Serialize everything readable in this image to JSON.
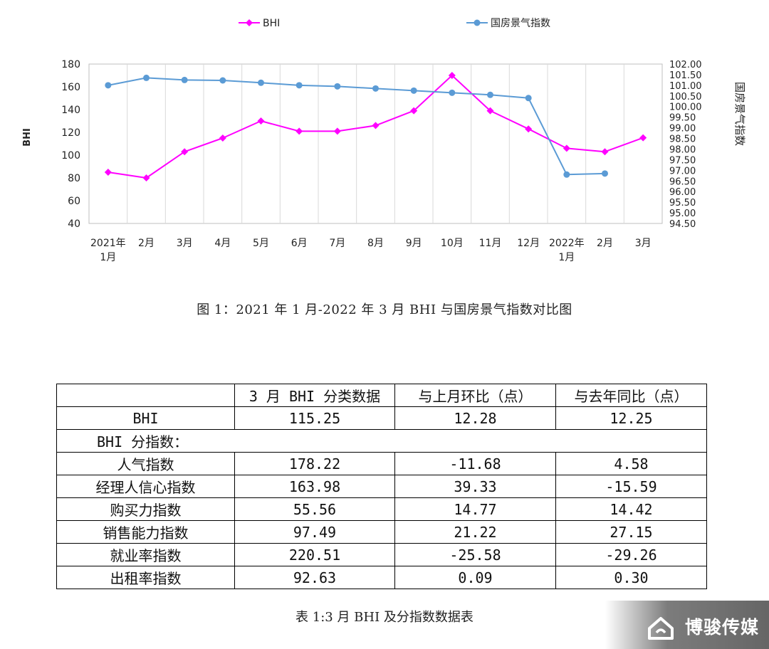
{
  "chart_data": {
    "type": "line",
    "categories": [
      "2021年\n1月",
      "2月",
      "3月",
      "4月",
      "5月",
      "6月",
      "7月",
      "8月",
      "9月",
      "10月",
      "11月",
      "12月",
      "2022年\n1月",
      "2月",
      "3月"
    ],
    "series": [
      {
        "name": "BHI",
        "axis": "left",
        "color": "#ff00ff",
        "marker": "diamond",
        "values": [
          85,
          80,
          103,
          115,
          130,
          121,
          121,
          126,
          139,
          170,
          139,
          123,
          106,
          103,
          115.25
        ]
      },
      {
        "name": "国房景气指数",
        "axis": "right",
        "color": "#5b9bd5",
        "marker": "circle",
        "values": [
          101.0,
          101.35,
          101.25,
          101.23,
          101.12,
          101.0,
          100.95,
          100.85,
          100.75,
          100.65,
          100.55,
          100.4,
          96.8,
          96.85,
          null
        ]
      }
    ],
    "ylabel": "BHI",
    "y2label": "国房景气指数",
    "ylim": [
      40,
      180
    ],
    "yticks": [
      "40",
      "60",
      "80",
      "100",
      "120",
      "140",
      "160",
      "180"
    ],
    "y2lim": [
      94.5,
      102.0
    ],
    "y2ticks": [
      "94.50",
      "95.00",
      "95.50",
      "96.00",
      "96.50",
      "97.00",
      "97.50",
      "98.00",
      "98.50",
      "99.00",
      "99.50",
      "100.00",
      "100.50",
      "101.00",
      "101.50",
      "102.00"
    ],
    "grid": "vertical",
    "legend": "top"
  },
  "figure_caption": "图 1：2021 年 1 月-2022 年 3 月 BHI 与国房景气指数对比图",
  "table": {
    "headers": [
      "",
      "3 月 BHI 分类数据",
      "与上月环比（点）",
      "与去年同比（点）"
    ],
    "bhi_row": [
      "BHI",
      "115.25",
      "12.28",
      "12.25"
    ],
    "subindex_label": "BHI 分指数：",
    "rows": [
      [
        "人气指数",
        "178.22",
        "-11.68",
        "4.58"
      ],
      [
        "经理人信心指数",
        "163.98",
        "39.33",
        "-15.59"
      ],
      [
        "购买力指数",
        "55.56",
        "14.77",
        "14.42"
      ],
      [
        "销售能力指数",
        "97.49",
        "21.22",
        "27.15"
      ],
      [
        "就业率指数",
        "220.51",
        "-25.58",
        "-29.26"
      ],
      [
        "出租率指数",
        "92.63",
        "0.09",
        "0.30"
      ]
    ]
  },
  "table_caption": "表 1:3 月 BHI 及分指数数据表",
  "watermark": {
    "text": "博骏传媒",
    "icon": "house-logo-icon"
  }
}
